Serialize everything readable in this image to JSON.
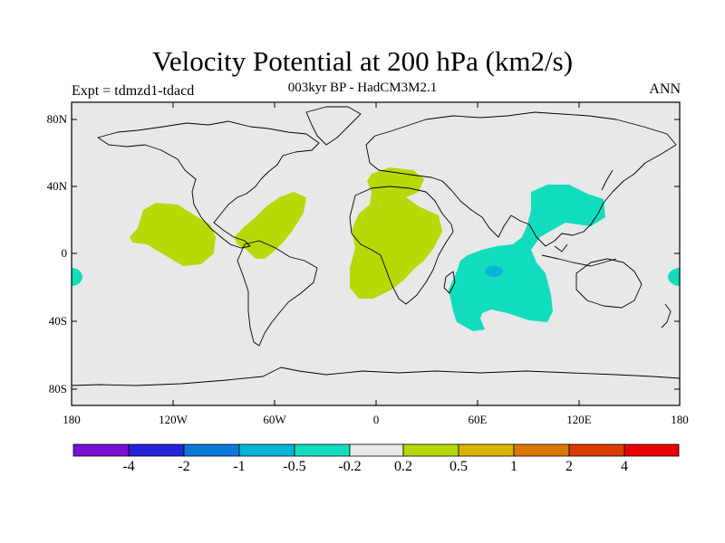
{
  "title": "Velocity Potential at 200 hPa (km2/s)",
  "subtitle": "003kyr BP - HadCM3M2.1",
  "experiment_label": "Expt = tdmzd1-tdacd",
  "season_label": "ANN",
  "axes": {
    "y_ticks": [
      "80N",
      "40N",
      "0",
      "40S",
      "80S"
    ],
    "x_ticks": [
      "180",
      "120W",
      "60W",
      "0",
      "60E",
      "120E",
      "180"
    ]
  },
  "colorbar": {
    "labels": [
      "-4",
      "-2",
      "-1",
      "-0.5",
      "-0.2",
      "0.2",
      "0.5",
      "1",
      "2",
      "4"
    ],
    "colors": [
      "#7a10d8",
      "#2424d8",
      "#0a78d8",
      "#08b4d8",
      "#12dcbe",
      "#e8e8e8",
      "#b8d808",
      "#dcb400",
      "#dc7800",
      "#dc3c00",
      "#ea0000"
    ]
  },
  "colors": {
    "ocean_background": "#e8e8e8",
    "positive_anomaly": "#b8d808",
    "negative_anomaly": "#12dcbe",
    "strong_negative": "#08b4d8",
    "coastline": "#000000"
  }
}
